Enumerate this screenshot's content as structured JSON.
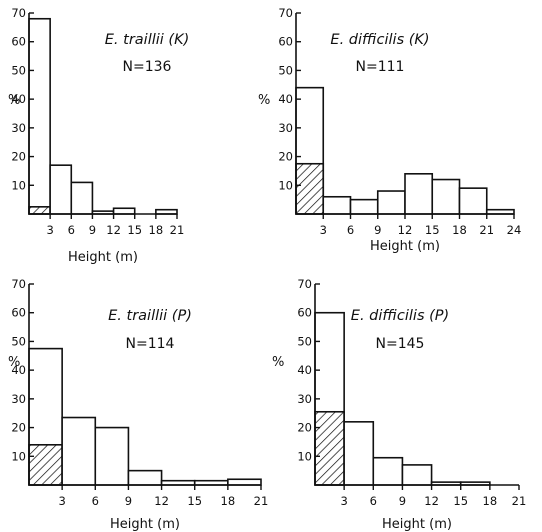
{
  "chart_data": [
    {
      "type": "bar",
      "title": "E. traillii (K)",
      "subtitle": "N=136",
      "xlabel": "Height (m)",
      "ylabel": "%",
      "bins": [
        [
          0,
          3
        ],
        [
          3,
          6
        ],
        [
          6,
          9
        ],
        [
          9,
          12
        ],
        [
          12,
          15
        ],
        [
          15,
          18
        ],
        [
          18,
          21
        ]
      ],
      "values": [
        68,
        17,
        11,
        1,
        2,
        0,
        1.5
      ],
      "hatched_values": [
        2.5,
        0,
        0,
        0,
        0,
        0,
        0
      ],
      "xticks": [
        3,
        6,
        9,
        12,
        15,
        18,
        21
      ],
      "yticks": [
        10,
        20,
        30,
        40,
        50,
        60,
        70
      ],
      "xlim": [
        0,
        21
      ],
      "ylim": [
        0,
        70
      ]
    },
    {
      "type": "bar",
      "title": "E. difficilis (K)",
      "subtitle": "N=111",
      "xlabel": "Height (m)",
      "ylabel": "%",
      "bins": [
        [
          0,
          3
        ],
        [
          3,
          6
        ],
        [
          6,
          9
        ],
        [
          9,
          12
        ],
        [
          12,
          15
        ],
        [
          15,
          18
        ],
        [
          18,
          21
        ],
        [
          21,
          24
        ]
      ],
      "values": [
        44,
        6,
        5,
        8,
        14,
        12,
        9,
        1.5
      ],
      "hatched_values": [
        17.5,
        0,
        0,
        0,
        0,
        0,
        0,
        0
      ],
      "xticks": [
        3,
        6,
        9,
        12,
        15,
        18,
        21,
        24
      ],
      "yticks": [
        10,
        20,
        30,
        40,
        50,
        60,
        70
      ],
      "xlim": [
        0,
        24
      ],
      "ylim": [
        0,
        70
      ]
    },
    {
      "type": "bar",
      "title": "E. traillii (P)",
      "subtitle": "N=114",
      "xlabel": "Height (m)",
      "ylabel": "%",
      "bins": [
        [
          0,
          3
        ],
        [
          3,
          6
        ],
        [
          6,
          9
        ],
        [
          9,
          12
        ],
        [
          12,
          15
        ],
        [
          15,
          18
        ],
        [
          18,
          21
        ]
      ],
      "values": [
        47.5,
        23.5,
        20,
        5,
        1.5,
        1.5,
        2
      ],
      "hatched_values": [
        14,
        0,
        0,
        0,
        0,
        0,
        0
      ],
      "xticks": [
        3,
        6,
        9,
        12,
        15,
        18,
        21
      ],
      "yticks": [
        10,
        20,
        30,
        40,
        50,
        60,
        70
      ],
      "xlim": [
        0,
        21
      ],
      "ylim": [
        0,
        70
      ]
    },
    {
      "type": "bar",
      "title": "E. difficilis (P)",
      "subtitle": "N=145",
      "xlabel": "Height (m)",
      "ylabel": "%",
      "bins": [
        [
          0,
          3
        ],
        [
          3,
          6
        ],
        [
          6,
          9
        ],
        [
          9,
          12
        ],
        [
          12,
          15
        ],
        [
          15,
          18
        ],
        [
          18,
          21
        ]
      ],
      "values": [
        60,
        22,
        9.5,
        7,
        1,
        1,
        0
      ],
      "hatched_values": [
        25.5,
        0,
        0,
        0,
        0,
        0,
        0
      ],
      "xticks": [
        3,
        6,
        9,
        12,
        15,
        18,
        21
      ],
      "yticks": [
        10,
        20,
        30,
        40,
        50,
        60,
        70
      ],
      "xlim": [
        0,
        21
      ],
      "ylim": [
        0,
        70
      ]
    }
  ]
}
